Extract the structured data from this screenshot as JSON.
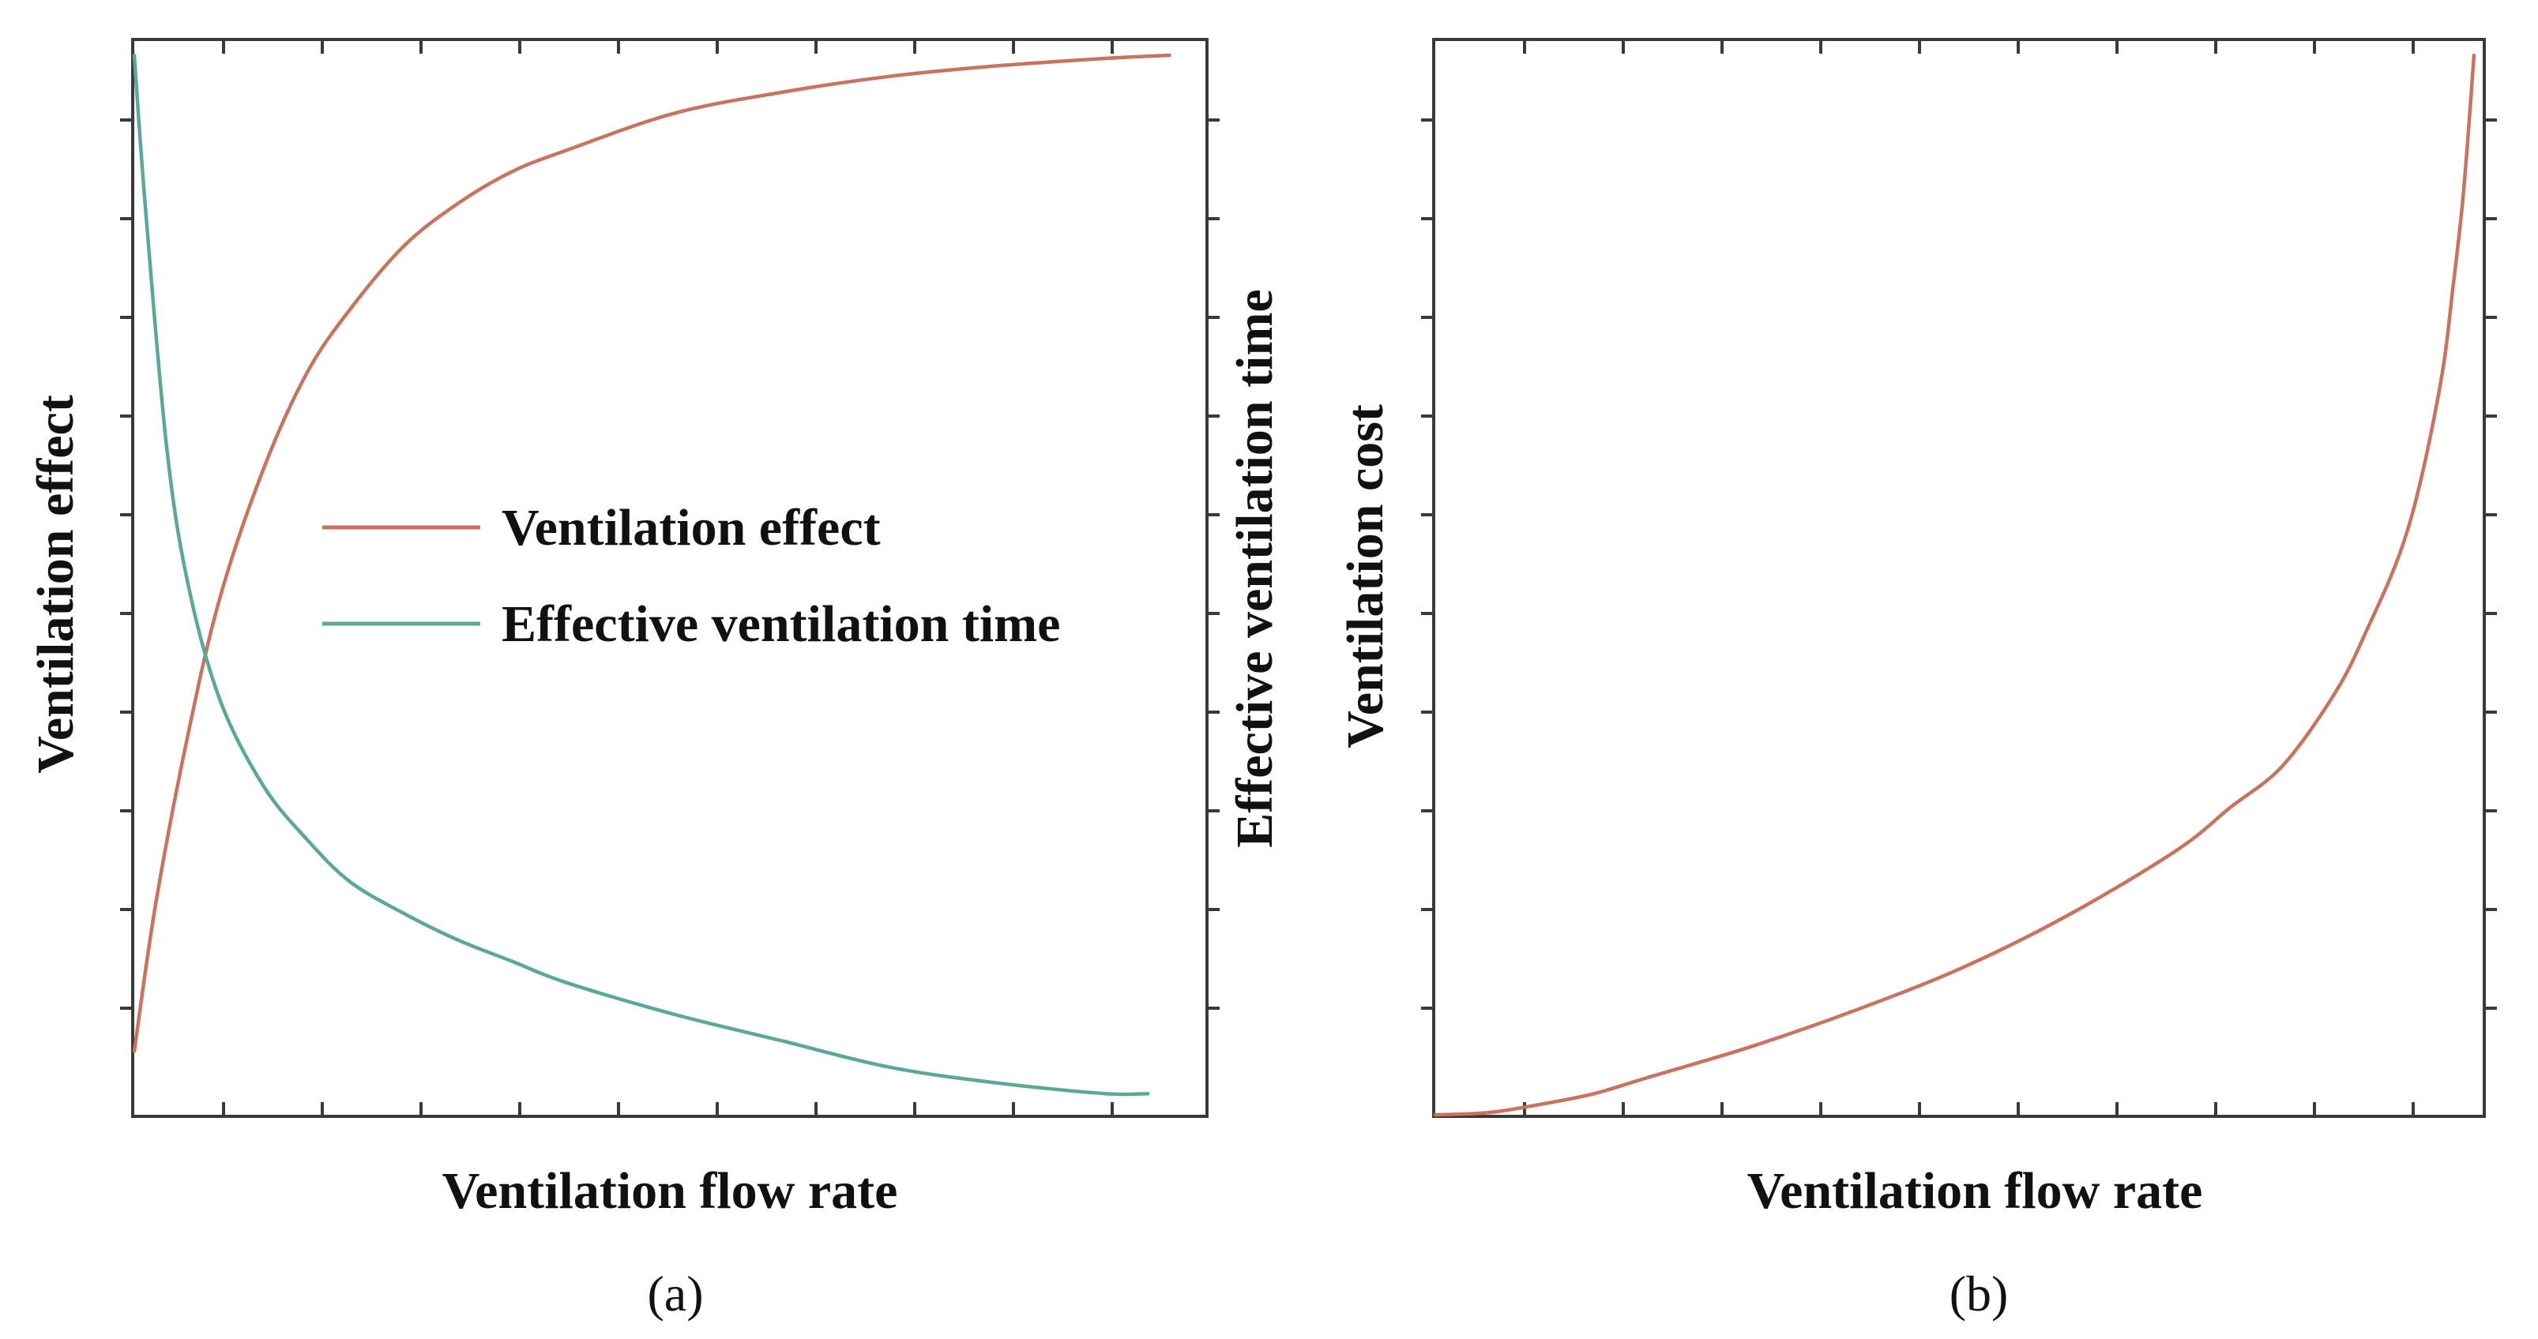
{
  "chart_data": [
    {
      "type": "line",
      "panel_label": "(a)",
      "xlabel": "Ventilation flow rate",
      "ylabel": "Ventilation effect",
      "ylabel_right": "Effective ventilation time",
      "xlim": [
        0,
        1
      ],
      "ylim": [
        0,
        1
      ],
      "tick_labels": false,
      "grid": false,
      "legend_position": "center-right",
      "series": [
        {
          "name": "Ventilation effect",
          "color": "#c9725f",
          "x": [
            0,
            0.02,
            0.05,
            0.08,
            0.12,
            0.16,
            0.2,
            0.25,
            0.3,
            0.35,
            0.4,
            0.5,
            0.6,
            0.7,
            0.8,
            0.9,
            0.96
          ],
          "y": [
            0.06,
            0.2,
            0.36,
            0.49,
            0.61,
            0.7,
            0.76,
            0.82,
            0.86,
            0.89,
            0.91,
            0.945,
            0.965,
            0.98,
            0.99,
            0.997,
            1.0
          ]
        },
        {
          "name": "Effective ventilation time",
          "color": "#5aa89a",
          "x": [
            0,
            0.01,
            0.03,
            0.05,
            0.08,
            0.12,
            0.16,
            0.2,
            0.25,
            0.3,
            0.35,
            0.4,
            0.5,
            0.6,
            0.7,
            0.8,
            0.9,
            0.94
          ],
          "y": [
            1.0,
            0.86,
            0.63,
            0.5,
            0.39,
            0.31,
            0.26,
            0.22,
            0.19,
            0.165,
            0.145,
            0.125,
            0.095,
            0.07,
            0.045,
            0.03,
            0.02,
            0.02
          ]
        }
      ]
    },
    {
      "type": "line",
      "panel_label": "(b)",
      "xlabel": "Ventilation flow rate",
      "ylabel": "Ventilation cost",
      "xlim": [
        0,
        1
      ],
      "ylim": [
        0,
        1
      ],
      "tick_labels": false,
      "grid": false,
      "series": [
        {
          "color": "#c9725f",
          "x": [
            0,
            0.05,
            0.1,
            0.15,
            0.2,
            0.3,
            0.4,
            0.5,
            0.6,
            0.7,
            0.75,
            0.8,
            0.85,
            0.88,
            0.91,
            0.93,
            0.95,
            0.96,
            0.97,
            0.98
          ],
          "y": [
            0,
            0.002,
            0.01,
            0.02,
            0.035,
            0.065,
            0.1,
            0.14,
            0.19,
            0.25,
            0.29,
            0.33,
            0.4,
            0.46,
            0.53,
            0.6,
            0.7,
            0.78,
            0.87,
            1.0
          ]
        }
      ]
    }
  ]
}
